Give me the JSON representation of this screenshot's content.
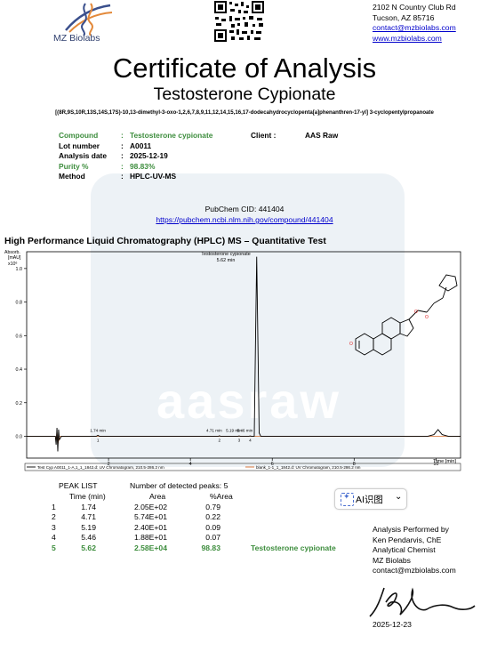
{
  "header": {
    "company": "MZ Biolabs",
    "address": [
      "2102 N Country Club Rd",
      "Tucson, AZ 85716"
    ],
    "email": "contact@mzbiolabs.com",
    "website": "www.mzbiolabs.com"
  },
  "title": "Certificate of Analysis",
  "subtitle": "Testosterone Cypionate",
  "iupac": "[(8R,9S,10R,13S,14S,17S)-10,13-dimethyl-3-oxo-1,2,6,7,8,9,11,12,14,15,16,17-dodecahydrocyclopenta[a]phenanthren-17-yl] 3-cyclopentylpropanoate",
  "info": {
    "compound_label": "Compound",
    "compound_value": "Testosterone cypionate",
    "lot_label": "Lot number",
    "lot_value": "A0011",
    "date_label": "Analysis date",
    "date_value": "2025-12-19",
    "purity_label": "Purity %",
    "purity_value": "98.83%",
    "method_label": "Method",
    "method_value": "HPLC-UV-MS",
    "client_label": "Client :",
    "client_value": "AAS Raw",
    "sep": ":"
  },
  "pubchem": {
    "cid": "PubChem CID: 441404",
    "url": "https://pubchem.ncbi.nlm.nih.gov/compound/441404"
  },
  "hplc_title": "High Performance Liquid Chromatography (HPLC) MS – Quantitative Test",
  "chart_data": {
    "type": "line",
    "ylabel_lines": [
      "Absorb.",
      "[mAU]",
      "x10⁶"
    ],
    "xlabel": "Time [min]",
    "xlim": [
      0,
      10.6
    ],
    "ylim": [
      -0.13,
      1.1
    ],
    "xticks": [
      2,
      4,
      6,
      8,
      10
    ],
    "yticks": [
      0.0,
      0.2,
      0.4,
      0.6,
      0.8,
      1.0
    ],
    "ytick_labels": [
      "0.0",
      "0.2",
      "0.4",
      "0.6",
      "0.8",
      "1.0"
    ],
    "peak_annotation": {
      "name": "Testosterone cypionate",
      "time": "5.62 min"
    },
    "peak_labels": [
      {
        "text": "1.74 min",
        "x": 1.74,
        "num": "1"
      },
      {
        "text": "4.71 min",
        "x": 4.71,
        "num": "2"
      },
      {
        "text": "5.19 min",
        "x": 5.19,
        "num": "3"
      },
      {
        "text": "5.46 min",
        "x": 5.46,
        "num": "4"
      }
    ],
    "series": [
      {
        "name": "Test Cyp A0011_1-A,1_1_1842.d: UV Chromatogram, 210.5-286.2 nm",
        "color": "#000000",
        "points": [
          [
            0,
            0
          ],
          [
            0.7,
            0
          ],
          [
            0.72,
            -0.05
          ],
          [
            0.74,
            0.05
          ],
          [
            0.76,
            -0.09
          ],
          [
            0.78,
            0.04
          ],
          [
            0.8,
            -0.02
          ],
          [
            0.85,
            0
          ],
          [
            1.7,
            0
          ],
          [
            1.74,
            0.006
          ],
          [
            1.78,
            0
          ],
          [
            4.68,
            0
          ],
          [
            4.71,
            0.003
          ],
          [
            4.74,
            0
          ],
          [
            5.16,
            0
          ],
          [
            5.19,
            0.002
          ],
          [
            5.22,
            0
          ],
          [
            5.43,
            0
          ],
          [
            5.46,
            0.002
          ],
          [
            5.49,
            0
          ],
          [
            5.56,
            0
          ],
          [
            5.59,
            0.55
          ],
          [
            5.62,
            1.07
          ],
          [
            5.65,
            0.55
          ],
          [
            5.68,
            0.02
          ],
          [
            5.72,
            0
          ],
          [
            9.8,
            0
          ],
          [
            9.95,
            0.01
          ],
          [
            10.05,
            0.04
          ],
          [
            10.15,
            0.01
          ],
          [
            10.3,
            0
          ],
          [
            10.6,
            0
          ]
        ]
      },
      {
        "name": "blank_1-1_1_1842.d: UV Chromatogram, 210.5-286.2 nm",
        "color": "#d46a2a",
        "points": [
          [
            0,
            0
          ],
          [
            0.7,
            0
          ],
          [
            0.72,
            -0.03
          ],
          [
            0.74,
            0.03
          ],
          [
            0.76,
            -0.05
          ],
          [
            0.8,
            0
          ],
          [
            10.6,
            0
          ]
        ]
      }
    ]
  },
  "peak_list": {
    "title": "PEAK LIST",
    "detected": "Number of detected peaks: 5",
    "headers": [
      "Time (min)",
      "Area",
      "%Area"
    ],
    "rows": [
      {
        "n": "1",
        "time": "1.74",
        "area": "2.05E+02",
        "pct": "0.79",
        "name": ""
      },
      {
        "n": "2",
        "time": "4.71",
        "area": "5.74E+01",
        "pct": "0.22",
        "name": ""
      },
      {
        "n": "3",
        "time": "5.19",
        "area": "2.40E+01",
        "pct": "0.09",
        "name": ""
      },
      {
        "n": "4",
        "time": "5.46",
        "area": "1.88E+01",
        "pct": "0.07",
        "name": ""
      },
      {
        "n": "5",
        "time": "5.62",
        "area": "2.58E+04",
        "pct": "98.83",
        "name": "Testosterone cypionate"
      }
    ]
  },
  "ai_button": {
    "label": "AI识图",
    "icon": "sparkle-icon"
  },
  "analyst": {
    "performed_by": "Analysis Performed by",
    "name": "Ken Pendarvis, ChE",
    "role": "Analytical Chemist",
    "org": "MZ Biolabs",
    "email": "contact@mzbiolabs.com",
    "date": "2025-12-23"
  },
  "watermark": "aasraw",
  "colors": {
    "green": "#3d8d3d",
    "link": "#0000cc",
    "trace": "#000000",
    "blank": "#d46a2a"
  }
}
